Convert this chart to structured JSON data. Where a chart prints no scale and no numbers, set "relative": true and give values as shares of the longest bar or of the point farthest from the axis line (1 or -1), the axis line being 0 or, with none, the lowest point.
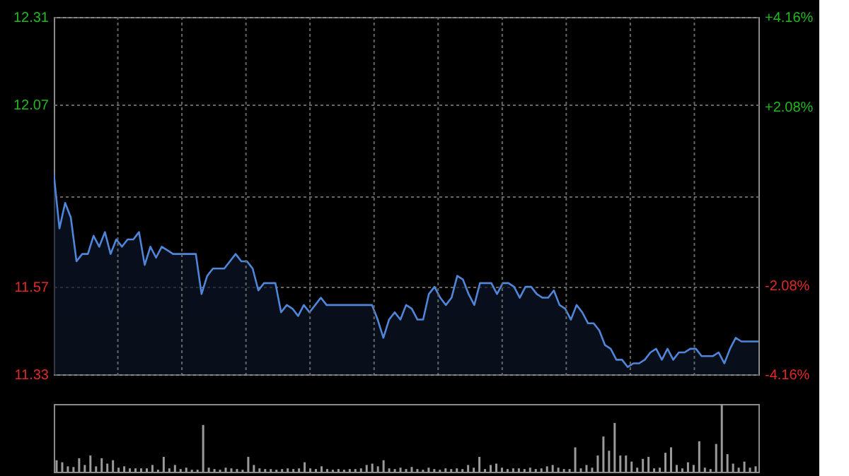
{
  "chart_data": [
    {
      "type": "area",
      "color": "#4f86d9",
      "categories": [
        null,
        null,
        null,
        null,
        null,
        null,
        null,
        null,
        null,
        null,
        null,
        null,
        null,
        null,
        null,
        null,
        null,
        null,
        null,
        null,
        null,
        null,
        null,
        null,
        null,
        null,
        null,
        null,
        null,
        null,
        null,
        null,
        null,
        null,
        null,
        null,
        null,
        null,
        null,
        null,
        null,
        null,
        null,
        null,
        null,
        null,
        null,
        null,
        null,
        null,
        null,
        null,
        null,
        null,
        null,
        null,
        null,
        null,
        null,
        null,
        null,
        null,
        null,
        null,
        null,
        null,
        null,
        null,
        null,
        null,
        null,
        null,
        null,
        null,
        null,
        null,
        null,
        null,
        null,
        null,
        null,
        null,
        null,
        null,
        null,
        null,
        null,
        null,
        null,
        null,
        null,
        null,
        null,
        null,
        null,
        null,
        null,
        null,
        null,
        null,
        null,
        null,
        null,
        null,
        null,
        null,
        null,
        null,
        null,
        null,
        null,
        null,
        null,
        null,
        null,
        null,
        null,
        null,
        null,
        null,
        null,
        null,
        null,
        null,
        null
      ],
      "values": [
        11.88,
        11.73,
        11.8,
        11.76,
        11.64,
        11.66,
        11.66,
        11.71,
        11.68,
        11.72,
        11.66,
        11.7,
        11.68,
        11.7,
        11.7,
        11.72,
        11.63,
        11.68,
        11.65,
        11.68,
        11.67,
        11.66,
        11.66,
        11.66,
        11.66,
        11.66,
        11.55,
        11.6,
        11.62,
        11.62,
        11.62,
        11.64,
        11.66,
        11.64,
        11.64,
        11.62,
        11.56,
        11.58,
        11.58,
        11.58,
        11.5,
        11.52,
        11.51,
        11.49,
        11.52,
        11.5,
        11.52,
        11.54,
        11.52,
        11.52,
        11.52,
        11.52,
        11.52,
        11.52,
        11.52,
        11.52,
        11.52,
        11.48,
        11.43,
        11.48,
        11.5,
        11.48,
        11.52,
        11.51,
        11.48,
        11.48,
        11.55,
        11.57,
        11.54,
        11.52,
        11.54,
        11.6,
        11.59,
        11.55,
        11.52,
        11.58,
        11.58,
        11.58,
        11.55,
        11.58,
        11.58,
        11.57,
        11.54,
        11.57,
        11.57,
        11.55,
        11.54,
        11.54,
        11.56,
        11.52,
        11.51,
        11.48,
        11.52,
        11.5,
        11.47,
        11.47,
        11.45,
        11.41,
        11.4,
        11.37,
        11.37,
        11.35,
        11.36,
        11.36,
        11.37,
        11.39,
        11.4,
        11.37,
        11.4,
        11.37,
        11.39,
        11.39,
        11.4,
        11.4,
        11.38,
        11.38,
        11.38,
        11.39,
        11.36,
        11.4,
        11.43,
        11.42,
        11.42,
        11.42,
        11.42
      ],
      "ylim": [
        11.33,
        12.31
      ],
      "yticks": [
        11.33,
        11.57,
        {
          "value": 11.82,
          "label": null
        },
        12.07,
        12.31
      ],
      "y2lim": [
        -4.16,
        4.16
      ],
      "y2ticks": [
        {
          "value": -4.16,
          "label": "-4.16%"
        },
        {
          "value": -2.08,
          "label": "-2.08%"
        },
        {
          "value": 0,
          "label": null
        },
        {
          "value": 2.08,
          "label": "+2.08%"
        },
        {
          "value": 4.16,
          "label": "+4.16%"
        }
      ],
      "grid": true,
      "tick_labels": "y"
    },
    {
      "type": "bar",
      "relative": true,
      "color": "#9a9a9a",
      "categories": [
        null,
        null,
        null,
        null,
        null,
        null,
        null,
        null,
        null,
        null,
        null,
        null,
        null,
        null,
        null,
        null,
        null,
        null,
        null,
        null,
        null,
        null,
        null,
        null,
        null,
        null,
        null,
        null,
        null,
        null,
        null,
        null,
        null,
        null,
        null,
        null,
        null,
        null,
        null,
        null,
        null,
        null,
        null,
        null,
        null,
        null,
        null,
        null,
        null,
        null,
        null,
        null,
        null,
        null,
        null,
        null,
        null,
        null,
        null,
        null,
        null,
        null,
        null,
        null,
        null,
        null,
        null,
        null,
        null,
        null,
        null,
        null,
        null,
        null,
        null,
        null,
        null,
        null,
        null,
        null,
        null,
        null,
        null,
        null,
        null,
        null,
        null,
        null,
        null,
        null,
        null,
        null,
        null,
        null,
        null,
        null,
        null,
        null,
        null,
        null,
        null,
        null,
        null,
        null,
        null,
        null,
        null,
        null,
        null,
        null,
        null,
        null,
        null,
        null,
        null,
        null,
        null,
        null,
        null,
        null,
        null,
        null,
        null,
        null,
        null
      ],
      "values": [
        0.17,
        0.14,
        0.08,
        0.07,
        0.2,
        0.1,
        0.24,
        0.08,
        0.2,
        0.12,
        0.17,
        0.06,
        0.08,
        0.05,
        0.05,
        0.05,
        0.05,
        0.1,
        0.03,
        0.22,
        0.05,
        0.1,
        0.04,
        0.06,
        0.03,
        0.03,
        0.69,
        0.06,
        0.04,
        0.03,
        0.06,
        0.05,
        0.04,
        0.03,
        0.22,
        0.1,
        0.05,
        0.04,
        0.04,
        0.03,
        0.04,
        0.05,
        0.04,
        0.05,
        0.14,
        0.05,
        0.04,
        0.08,
        0.04,
        0.03,
        0.04,
        0.03,
        0.04,
        0.04,
        0.05,
        0.1,
        0.12,
        0.08,
        0.17,
        0.05,
        0.04,
        0.06,
        0.04,
        0.07,
        0.04,
        0.03,
        0.06,
        0.04,
        0.03,
        0.05,
        0.04,
        0.05,
        0.04,
        0.1,
        0.06,
        0.22,
        0.04,
        0.1,
        0.12,
        0.06,
        0.04,
        0.05,
        0.05,
        0.04,
        0.06,
        0.04,
        0.05,
        0.08,
        0.1,
        0.06,
        0.04,
        0.04,
        0.36,
        0.05,
        0.1,
        0.06,
        0.24,
        0.52,
        0.31,
        0.72,
        0.24,
        0.24,
        0.15,
        0.06,
        0.19,
        0.22,
        0.05,
        0.06,
        0.28,
        0.36,
        0.1,
        0.05,
        0.14,
        0.1,
        0.45,
        0.06,
        0.04,
        0.41,
        1.0,
        0.26,
        0.12,
        0.06,
        0.15,
        0.06,
        0.08
      ]
    }
  ]
}
